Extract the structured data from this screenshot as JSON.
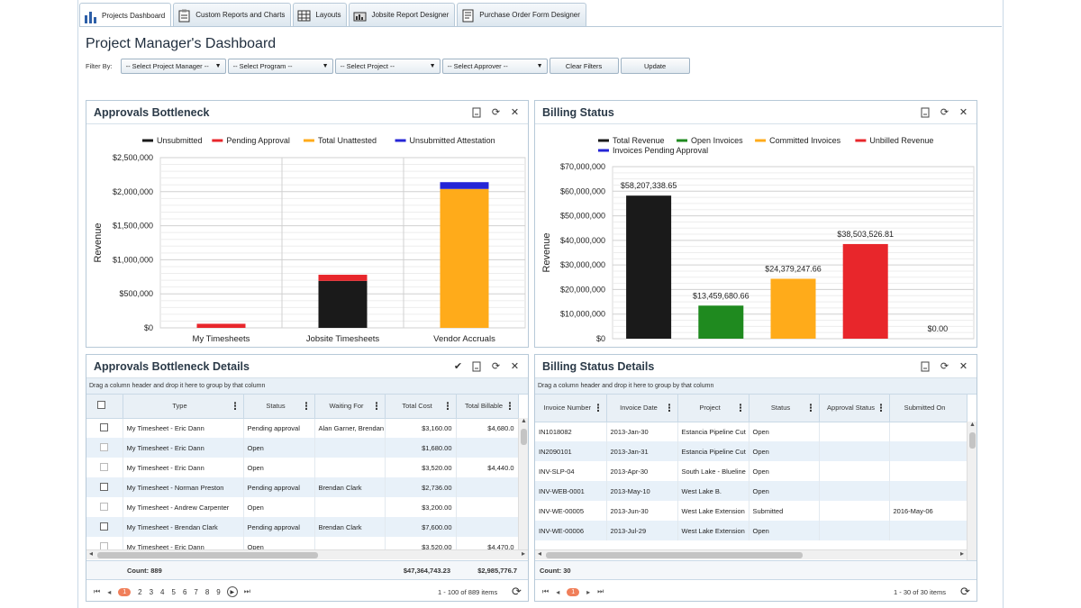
{
  "tabs": [
    {
      "label": "Projects Dashboard",
      "icon": "bar-chart-icon",
      "active": true
    },
    {
      "label": "Custom Reports and Charts",
      "icon": "clipboard-icon",
      "active": false
    },
    {
      "label": "Layouts",
      "icon": "layout-grid-icon",
      "active": false
    },
    {
      "label": "Jobsite Report Designer",
      "icon": "report-designer-icon",
      "active": false
    },
    {
      "label": "Purchase Order Form Designer",
      "icon": "form-designer-icon",
      "active": false
    }
  ],
  "page_title": "Project Manager's Dashboard",
  "filters": {
    "label": "Filter By:",
    "project_manager": "-- Select Project Manager --",
    "program": "-- Select Program --",
    "project": "-- Select Project --",
    "approver": "-- Select Approver --",
    "clear_label": "Clear Filters",
    "update_label": "Update"
  },
  "approvals_chart": {
    "title": "Approvals Bottleneck",
    "colors": {
      "Unsubmitted": "#1a1a1a",
      "Pending Approval": "#e8262b",
      "Total Unattested": "#ffab1a",
      "Unsubmitted Attestation": "#2525d6"
    },
    "chart_data": {
      "type": "bar",
      "stacked": true,
      "ylabel": "Revenue",
      "ylim": [
        0,
        2500000
      ],
      "yticks": [
        "$2,500,000",
        "$2,000,000",
        "$1,500,000",
        "$1,000,000",
        "$500,000",
        "$0"
      ],
      "legend": [
        "Unsubmitted",
        "Pending Approval",
        "Total Unattested",
        "Unsubmitted Attestation"
      ],
      "legend_position": "top",
      "categories": [
        "My Timesheets",
        "Jobsite Timesheets",
        "Vendor Accruals"
      ],
      "series": [
        {
          "name": "Unsubmitted",
          "values": [
            0,
            690000,
            0
          ]
        },
        {
          "name": "Pending Approval",
          "values": [
            60000,
            90000,
            0
          ]
        },
        {
          "name": "Total Unattested",
          "values": [
            0,
            0,
            2040000
          ]
        },
        {
          "name": "Unsubmitted Attestation",
          "values": [
            0,
            0,
            100000
          ]
        }
      ]
    }
  },
  "billing_chart": {
    "title": "Billing Status",
    "chart_data": {
      "type": "bar",
      "ylabel": "Revenue",
      "ylim": [
        0,
        70000000
      ],
      "yticks": [
        "$70,000,000",
        "$60,000,000",
        "$50,000,000",
        "$40,000,000",
        "$30,000,000",
        "$20,000,000",
        "$10,000,000",
        "$0"
      ],
      "legend_position": "top",
      "bars": [
        {
          "name": "Total Revenue",
          "value": 58207338.65,
          "label": "$58,207,338.65",
          "color": "#1a1a1a"
        },
        {
          "name": "Open Invoices",
          "value": 13459680.66,
          "label": "$13,459,680.66",
          "color": "#1f8a1f"
        },
        {
          "name": "Committed Invoices",
          "value": 24379247.66,
          "label": "$24,379,247.66",
          "color": "#ffab1a"
        },
        {
          "name": "Unbilled Revenue",
          "value": 38503526.81,
          "label": "$38,503,526.81",
          "color": "#e8262b"
        },
        {
          "name": "Invoices Pending Approval",
          "value": 0,
          "label": "$0.00",
          "color": "#2525d6"
        }
      ]
    }
  },
  "approvals_details": {
    "title": "Approvals Bottleneck Details",
    "group_hint": "Drag a column header and drop it here to group by that column",
    "columns": [
      "Type",
      "Status",
      "Waiting For",
      "Total Cost",
      "Total Billable"
    ],
    "rows": [
      {
        "type": "My Timesheet - Eric Dann",
        "status": "Pending approval",
        "waiting": "Alan Garner, Brendan",
        "cost": "$3,160.00",
        "billable": "$4,680.0"
      },
      {
        "type": "My Timesheet - Eric Dann",
        "status": "Open",
        "waiting": "",
        "cost": "$1,680.00",
        "billable": ""
      },
      {
        "type": "My Timesheet - Eric Dann",
        "status": "Open",
        "waiting": "",
        "cost": "$3,520.00",
        "billable": "$4,440.0"
      },
      {
        "type": "My Timesheet - Norman Preston",
        "status": "Pending approval",
        "waiting": "Brendan Clark",
        "cost": "$2,736.00",
        "billable": ""
      },
      {
        "type": "My Timesheet - Andrew Carpenter",
        "status": "Open",
        "waiting": "",
        "cost": "$3,200.00",
        "billable": ""
      },
      {
        "type": "My Timesheet - Brendan Clark",
        "status": "Pending approval",
        "waiting": "Brendan Clark",
        "cost": "$7,600.00",
        "billable": ""
      },
      {
        "type": "My Timesheet - Eric Dann",
        "status": "Open",
        "waiting": "",
        "cost": "$3,520.00",
        "billable": "$4,470.0"
      }
    ],
    "footer": {
      "count": "Count: 889",
      "cost": "$47,364,743.23",
      "billable": "$2,985,776.7"
    },
    "pages": [
      "1",
      "2",
      "3",
      "4",
      "5",
      "6",
      "7",
      "8",
      "9"
    ],
    "pager_info": "1 - 100 of 889 items"
  },
  "billing_details": {
    "title": "Billing Status Details",
    "group_hint": "Drag a column header and drop it here to group by that column",
    "columns": [
      "Invoice Number",
      "Invoice Date",
      "Project",
      "Status",
      "Approval Status",
      "Submitted On"
    ],
    "rows": [
      {
        "invoice": "IN1018082",
        "date": "2013-Jan-30",
        "project": "Estancia Pipeline Cut",
        "status": "Open",
        "approval": "",
        "submitted": ""
      },
      {
        "invoice": "IN2090101",
        "date": "2013-Jan-31",
        "project": "Estancia Pipeline Cut",
        "status": "Open",
        "approval": "",
        "submitted": ""
      },
      {
        "invoice": "INV-SLP-04",
        "date": "2013-Apr-30",
        "project": "South Lake - Blueline",
        "status": "Open",
        "approval": "",
        "submitted": ""
      },
      {
        "invoice": "INV-WEB-0001",
        "date": "2013-May-10",
        "project": "West Lake B.",
        "status": "Open",
        "approval": "",
        "submitted": ""
      },
      {
        "invoice": "INV-WE-00005",
        "date": "2013-Jun-30",
        "project": "West Lake Extension",
        "status": "Submitted",
        "approval": "",
        "submitted": "2016-May-06"
      },
      {
        "invoice": "INV-WE-00006",
        "date": "2013-Jul-29",
        "project": "West Lake Extension",
        "status": "Open",
        "approval": "",
        "submitted": ""
      }
    ],
    "footer": {
      "count": "Count: 30"
    },
    "pager_info": "1 - 30 of 30 items"
  }
}
